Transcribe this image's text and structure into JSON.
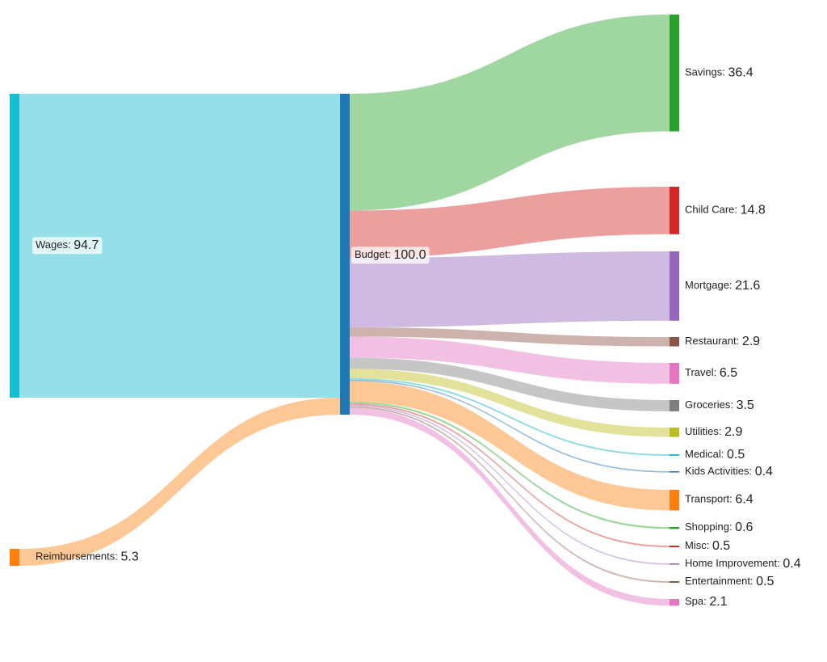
{
  "chart_data": {
    "type": "sankey",
    "title": "",
    "sources": [
      {
        "id": "wages",
        "name": "Wages",
        "value": 94.7,
        "color": "#17becf",
        "link_color": "#95e0e8"
      },
      {
        "id": "reimb",
        "name": "Reimbursements",
        "value": 5.3,
        "color": "#ff7f0e",
        "link_color": "#fec896"
      }
    ],
    "hub": {
      "id": "budget",
      "name": "Budget",
      "value": 100.0,
      "color": "#1f77b4"
    },
    "targets": [
      {
        "id": "savings",
        "name": "Savings",
        "value": 36.4,
        "color": "#2ca02c",
        "link_color": "#a0d6a0"
      },
      {
        "id": "childcare",
        "name": "Child Care",
        "value": 14.8,
        "color": "#d62728",
        "link_color": "#eb9f9f"
      },
      {
        "id": "mortgage",
        "name": "Mortgage",
        "value": 21.6,
        "color": "#9467bd",
        "link_color": "#cfbae1"
      },
      {
        "id": "restaurant",
        "name": "Restaurant",
        "value": 2.9,
        "color": "#8c564b",
        "link_color": "#cdb3ae"
      },
      {
        "id": "travel",
        "name": "Travel",
        "value": 6.5,
        "color": "#e377c2",
        "link_color": "#f1c0e3"
      },
      {
        "id": "groceries",
        "name": "Groceries",
        "value": 3.5,
        "color": "#7f7f7f",
        "link_color": "#c6c6c6"
      },
      {
        "id": "utilities",
        "name": "Utilities",
        "value": 2.9,
        "color": "#bcbd22",
        "link_color": "#e2e29a"
      },
      {
        "id": "medical",
        "name": "Medical",
        "value": 0.5,
        "color": "#17becf",
        "link_color": "#8edbe4"
      },
      {
        "id": "kids",
        "name": "Kids Activities",
        "value": 0.4,
        "color": "#1f77b4",
        "link_color": "#8fb9da"
      },
      {
        "id": "transport",
        "name": "Transport",
        "value": 6.4,
        "color": "#ff7f0e",
        "link_color": "#fec896"
      },
      {
        "id": "shopping",
        "name": "Shopping",
        "value": 0.6,
        "color": "#2ca02c",
        "link_color": "#a0d6a0"
      },
      {
        "id": "misc",
        "name": "Misc",
        "value": 0.5,
        "color": "#d62728",
        "link_color": "#eb9f9f"
      },
      {
        "id": "homeimp",
        "name": "Home Improvement",
        "value": 0.4,
        "color": "#9467bd",
        "link_color": "#cfbae1"
      },
      {
        "id": "entertainment",
        "name": "Entertainment",
        "value": 0.5,
        "color": "#8c564b",
        "link_color": "#cdb3ae"
      },
      {
        "id": "spa",
        "name": "Spa",
        "value": 2.1,
        "color": "#e377c2",
        "link_color": "#f1c0e3"
      }
    ]
  }
}
